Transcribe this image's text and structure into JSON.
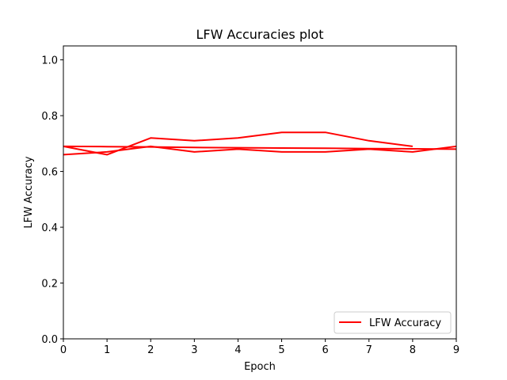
{
  "chart_data": {
    "type": "line",
    "title": "LFW Accuracies plot",
    "xlabel": "Epoch",
    "ylabel": "LFW Accuracy",
    "xlim": [
      0,
      9
    ],
    "ylim": [
      0,
      1.05
    ],
    "xticks": [
      "0",
      "1",
      "2",
      "3",
      "4",
      "5",
      "6",
      "7",
      "8",
      "9"
    ],
    "yticks": [
      "0.0",
      "0.2",
      "0.4",
      "0.6",
      "0.8",
      "1.0"
    ],
    "grid": false,
    "legend_position": "lower-right",
    "series": [
      {
        "name": "LFW Accuracy",
        "color": "#ff0000",
        "x": [
          0,
          1,
          2,
          3,
          4,
          5,
          6,
          7,
          8
        ],
        "y": [
          0.69,
          0.66,
          0.72,
          0.71,
          0.72,
          0.74,
          0.74,
          0.71,
          0.69
        ]
      },
      {
        "name": "",
        "color": "#ff0000",
        "x": [
          0,
          1,
          2,
          3,
          4,
          5,
          6,
          7,
          8,
          9
        ],
        "y": [
          0.66,
          0.67,
          0.69,
          0.67,
          0.68,
          0.67,
          0.67,
          0.68,
          0.67,
          0.69
        ]
      },
      {
        "name": "",
        "color": "#ff0000",
        "x": [
          0,
          1,
          2,
          3,
          4,
          5,
          6,
          7,
          8,
          9
        ],
        "y": [
          0.69,
          0.689,
          0.688,
          0.686,
          0.685,
          0.684,
          0.683,
          0.682,
          0.681,
          0.68
        ]
      }
    ]
  }
}
